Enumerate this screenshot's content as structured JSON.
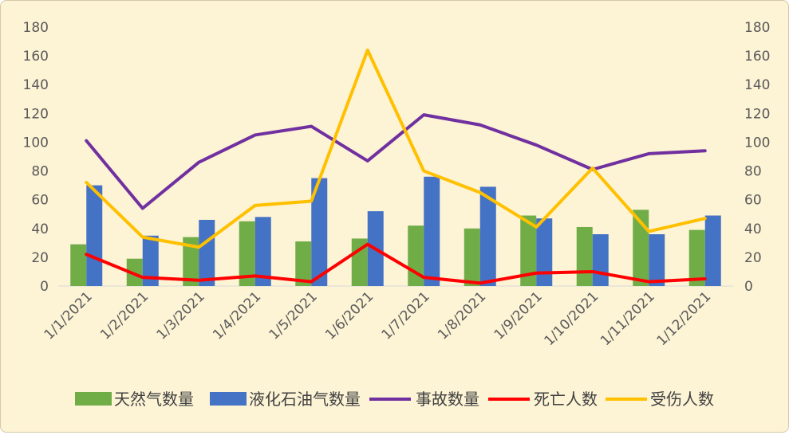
{
  "chart_data": {
    "type": "bar",
    "categories": [
      "1/1/2021",
      "1/2/2021",
      "1/3/2021",
      "1/4/2021",
      "1/5/2021",
      "1/6/2021",
      "1/7/2021",
      "1/8/2021",
      "1/9/2021",
      "1/10/2021",
      "1/11/2021",
      "1/12/2021"
    ],
    "ylim": [
      0,
      180
    ],
    "y_ticks": [
      0,
      20,
      40,
      60,
      80,
      100,
      120,
      140,
      160,
      180
    ],
    "secondary_ylim": [
      0,
      180
    ],
    "grid": false,
    "legend_position": "bottom",
    "series": [
      {
        "name": "天然气数量",
        "type": "bar",
        "axis": "left",
        "color": "#70ad47",
        "values": [
          29,
          19,
          34,
          45,
          31,
          33,
          42,
          40,
          49,
          41,
          53,
          39
        ]
      },
      {
        "name": "液化石油气数量",
        "type": "bar",
        "axis": "left",
        "color": "#4472c4",
        "values": [
          70,
          35,
          46,
          48,
          75,
          52,
          76,
          69,
          47,
          36,
          36,
          49
        ]
      },
      {
        "name": "事故数量",
        "type": "line",
        "axis": "right",
        "color": "#7030a0",
        "values": [
          101,
          54,
          86,
          105,
          111,
          87,
          119,
          112,
          98,
          81,
          92,
          94
        ]
      },
      {
        "name": "死亡人数",
        "type": "line",
        "axis": "right",
        "color": "#ff0000",
        "values": [
          22,
          6,
          4,
          7,
          3,
          29,
          6,
          2,
          9,
          10,
          3,
          5
        ]
      },
      {
        "name": "受伤人数",
        "type": "line",
        "axis": "right",
        "color": "#ffc000",
        "values": [
          72,
          34,
          27,
          56,
          59,
          164,
          80,
          65,
          41,
          82,
          38,
          47
        ]
      }
    ]
  }
}
